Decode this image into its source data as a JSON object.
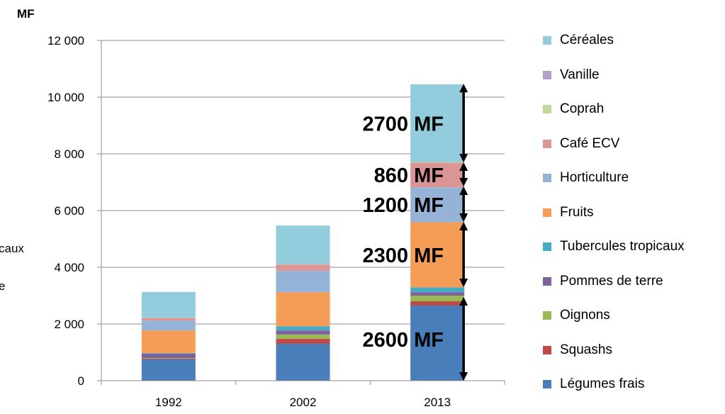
{
  "chart_data": {
    "type": "bar",
    "stacked": true,
    "unit_label": "MF",
    "categories": [
      "1992",
      "2002",
      "2013"
    ],
    "ylim": [
      0,
      12000
    ],
    "yticks": [
      0,
      2000,
      4000,
      6000,
      8000,
      10000,
      12000
    ],
    "ytick_labels": [
      "0",
      "2 000",
      "4 000",
      "6 000",
      "8 000",
      "10 000",
      "12 000"
    ],
    "grid": true,
    "legend_position": "right",
    "series": [
      {
        "name": "Légumes frais",
        "color": "#4a7ebb",
        "values": [
          750,
          1300,
          2650
        ]
      },
      {
        "name": "Squashs",
        "color": "#be4b48",
        "values": [
          30,
          180,
          150
        ]
      },
      {
        "name": "Oignons",
        "color": "#98b954",
        "values": [
          20,
          150,
          200
        ]
      },
      {
        "name": "Pommes de terre",
        "color": "#7d60a0",
        "values": [
          150,
          140,
          120
        ]
      },
      {
        "name": "Tubercules tropicaux",
        "color": "#46aac5",
        "values": [
          20,
          150,
          170
        ]
      },
      {
        "name": "Fruits",
        "color": "#f59d56",
        "values": [
          800,
          1200,
          2300
        ]
      },
      {
        "name": "Horticulture",
        "color": "#95b3d7",
        "values": [
          350,
          750,
          1230
        ]
      },
      {
        "name": "Café ECV",
        "color": "#d99694",
        "values": [
          80,
          220,
          860
        ]
      },
      {
        "name": "Coprah",
        "color": "#c3d69b",
        "values": [
          10,
          10,
          20
        ]
      },
      {
        "name": "Vanille",
        "color": "#b3a2c7",
        "values": [
          20,
          20,
          20
        ]
      },
      {
        "name": "Céréales",
        "color": "#93cddd",
        "values": [
          900,
          1350,
          2730
        ]
      }
    ],
    "annotations": [
      {
        "value": "2600",
        "unit": " MF",
        "ymin": 0,
        "ymax": 2950
      },
      {
        "value": "2300",
        "unit": " MF",
        "ymin": 3300,
        "ymax": 5600
      },
      {
        "value": "1200",
        "unit": " MF",
        "ymin": 5600,
        "ymax": 6850
      },
      {
        "value": "860",
        "unit": " MF",
        "ymin": 6850,
        "ymax": 7700
      },
      {
        "value": "2700",
        "unit": " MF",
        "ymin": 7700,
        "ymax": 10470
      }
    ]
  },
  "clipped_text": {
    "line1": "caux",
    "line2": "e"
  }
}
